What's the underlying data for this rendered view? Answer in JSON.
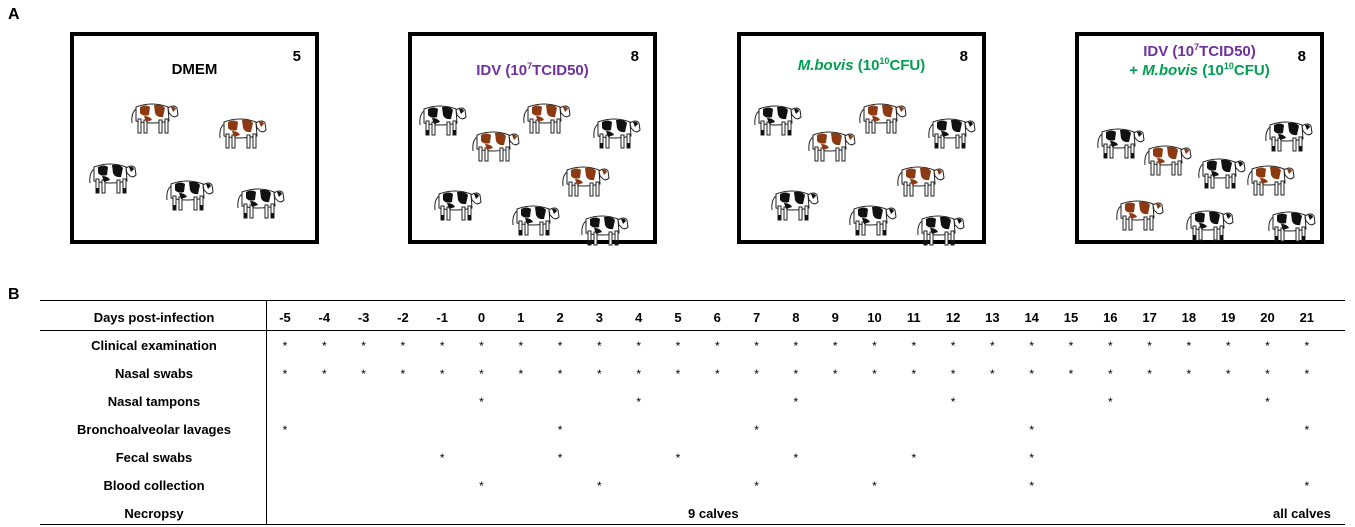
{
  "panel_a_label": "A",
  "panel_b_label": "B",
  "groups": [
    {
      "line1_parts": [
        "DMEM"
      ],
      "line2_parts": [],
      "count": "5",
      "spotted_cows": 2,
      "black_cows": 3
    },
    {
      "line1_parts": [
        "IDV (10",
        "7",
        "TCID50)"
      ],
      "line2_parts": [],
      "count": "8",
      "spotted_cows": 3,
      "black_cows": 5
    },
    {
      "line1_parts": [
        "M.bovis",
        " (10",
        "10",
        "CFU)"
      ],
      "line2_parts": [],
      "count": "8",
      "spotted_cows": 3,
      "black_cows": 5
    },
    {
      "line1_parts": [
        "IDV (10",
        "7",
        "TCID50)"
      ],
      "line2_parts": [
        "+ ",
        "M.bovis",
        " (10",
        "10",
        "CFU)"
      ],
      "count": "8",
      "spotted_cows": 3,
      "black_cows": 5
    }
  ],
  "schedule": {
    "header_label": "Days post-infection",
    "days": [
      "-5",
      "-4",
      "-3",
      "-2",
      "-1",
      "0",
      "1",
      "2",
      "3",
      "4",
      "5",
      "6",
      "7",
      "8",
      "9",
      "10",
      "11",
      "12",
      "13",
      "14",
      "15",
      "16",
      "17",
      "18",
      "19",
      "20",
      "21"
    ],
    "star_symbol": "*",
    "rows": [
      {
        "label": "Clinical examination",
        "days": [
          "-5",
          "-4",
          "-3",
          "-2",
          "-1",
          "0",
          "1",
          "2",
          "3",
          "4",
          "5",
          "6",
          "7",
          "8",
          "9",
          "10",
          "11",
          "12",
          "13",
          "14",
          "15",
          "16",
          "17",
          "18",
          "19",
          "20",
          "21"
        ]
      },
      {
        "label": "Nasal swabs",
        "days": [
          "-5",
          "-4",
          "-3",
          "-2",
          "-1",
          "0",
          "1",
          "2",
          "3",
          "4",
          "5",
          "6",
          "7",
          "8",
          "9",
          "10",
          "11",
          "12",
          "13",
          "14",
          "15",
          "16",
          "17",
          "18",
          "19",
          "20",
          "21"
        ]
      },
      {
        "label": "Nasal tampons",
        "days": [
          "0",
          "4",
          "8",
          "12",
          "16",
          "20"
        ]
      },
      {
        "label": "Bronchoalveolar lavages",
        "days": [
          "-5",
          "2",
          "7",
          "14",
          "21"
        ]
      },
      {
        "label": "Fecal swabs",
        "days": [
          "-1",
          "2",
          "5",
          "8",
          "11",
          "14"
        ]
      },
      {
        "label": "Blood collection",
        "days": [
          "0",
          "3",
          "7",
          "10",
          "14",
          "21"
        ]
      }
    ],
    "necropsy": {
      "label": "Necropsy",
      "mid_text": "9 calves",
      "end_text": "all calves"
    }
  }
}
